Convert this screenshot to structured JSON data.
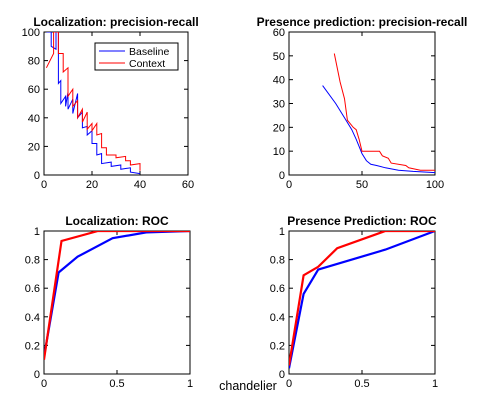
{
  "figure_caption": "chandelier",
  "chart_data": [
    {
      "type": "line",
      "title": "Localization: precision-recall",
      "xlim": [
        0,
        60
      ],
      "ylim": [
        0,
        100
      ],
      "xticks": [
        0,
        20,
        40,
        60
      ],
      "yticks": [
        0,
        20,
        40,
        60,
        80,
        100
      ],
      "grid": false,
      "legend_position": "top-right",
      "series": [
        {
          "name": "Baseline",
          "color": "#0000ff",
          "width": 1,
          "x": [
            1,
            3,
            3,
            5,
            5,
            6,
            6,
            7,
            7,
            9,
            9,
            10,
            10,
            12,
            12,
            14,
            14,
            16,
            16,
            18,
            18,
            20,
            20,
            22,
            22,
            24,
            24,
            28,
            28,
            32,
            32,
            36,
            36,
            40
          ],
          "y": [
            100,
            100,
            90,
            88,
            100,
            100,
            64,
            66,
            50,
            55,
            48,
            58,
            46,
            53,
            43,
            57,
            40,
            44,
            33,
            34,
            28,
            31,
            22,
            22,
            14,
            15,
            8,
            9,
            6,
            7,
            4,
            5,
            2,
            1
          ]
        },
        {
          "name": "Context",
          "color": "#ff0000",
          "width": 1,
          "x": [
            1,
            4,
            4,
            6,
            6,
            8,
            8,
            10,
            10,
            12,
            12,
            14,
            14,
            16,
            16,
            18,
            18,
            20,
            20,
            22,
            22,
            24,
            24,
            26,
            26,
            30,
            30,
            34,
            34,
            36,
            36,
            40,
            40
          ],
          "y": [
            75,
            85,
            100,
            100,
            85,
            85,
            72,
            75,
            55,
            60,
            48,
            52,
            40,
            46,
            37,
            44,
            32,
            36,
            31,
            36,
            28,
            29,
            19,
            19,
            14,
            14,
            12,
            13,
            10,
            10,
            7,
            8,
            3
          ]
        }
      ]
    },
    {
      "type": "line",
      "title": "Presence prediction: precision-recall",
      "xlim": [
        0,
        100
      ],
      "ylim": [
        0,
        60
      ],
      "xticks": [
        0,
        50,
        100
      ],
      "yticks": [
        0,
        10,
        20,
        30,
        40,
        50,
        60
      ],
      "grid": false,
      "series": [
        {
          "name": "Baseline",
          "color": "#0000ff",
          "width": 1,
          "x": [
            23,
            32,
            38,
            43,
            46,
            48,
            50,
            53,
            56,
            60,
            66,
            75,
            85,
            100
          ],
          "y": [
            37.5,
            30,
            24,
            19,
            15,
            12,
            9,
            6,
            4.5,
            4,
            3,
            2,
            1.5,
            1
          ]
        },
        {
          "name": "Context",
          "color": "#ff0000",
          "width": 1,
          "x": [
            31,
            35,
            38,
            40,
            44,
            46,
            48,
            50,
            52,
            62,
            64,
            68,
            70,
            80,
            82,
            90,
            100
          ],
          "y": [
            51,
            39,
            32,
            23,
            20,
            19,
            15,
            10,
            10,
            10,
            8,
            7,
            5,
            4,
            3,
            2,
            2
          ]
        }
      ]
    },
    {
      "type": "line",
      "title": "Localization: ROC",
      "xlim": [
        0,
        1
      ],
      "ylim": [
        0,
        1
      ],
      "xticks": [
        0,
        0.5,
        1
      ],
      "yticks": [
        0,
        0.2,
        0.4,
        0.6,
        0.8,
        1
      ],
      "grid": false,
      "series": [
        {
          "name": "Baseline",
          "color": "#0000ff",
          "width": 2.2,
          "x": [
            0,
            0.1,
            0.23,
            0.47,
            0.7,
            1.0
          ],
          "y": [
            0.12,
            0.71,
            0.82,
            0.95,
            0.99,
            1.0
          ]
        },
        {
          "name": "Context",
          "color": "#ff0000",
          "width": 2.2,
          "x": [
            0,
            0.12,
            0.37,
            0.47,
            0.7,
            1.0
          ],
          "y": [
            0.1,
            0.93,
            1.0,
            1.0,
            1.0,
            1.0
          ]
        }
      ]
    },
    {
      "type": "line",
      "title": "Presence Prediction: ROC",
      "xlim": [
        0,
        1
      ],
      "ylim": [
        0,
        1
      ],
      "xticks": [
        0,
        0.5,
        1
      ],
      "yticks": [
        0,
        0.2,
        0.4,
        0.6,
        0.8,
        1
      ],
      "grid": false,
      "series": [
        {
          "name": "Baseline",
          "color": "#0000ff",
          "width": 2.2,
          "x": [
            0,
            0.1,
            0.2,
            0.66,
            1.0
          ],
          "y": [
            0.04,
            0.56,
            0.73,
            0.87,
            1.0
          ]
        },
        {
          "name": "Context",
          "color": "#ff0000",
          "width": 2.2,
          "x": [
            0,
            0.1,
            0.2,
            0.33,
            0.66,
            1.0
          ],
          "y": [
            0.06,
            0.69,
            0.75,
            0.88,
            1.0,
            1.0
          ]
        }
      ]
    }
  ]
}
